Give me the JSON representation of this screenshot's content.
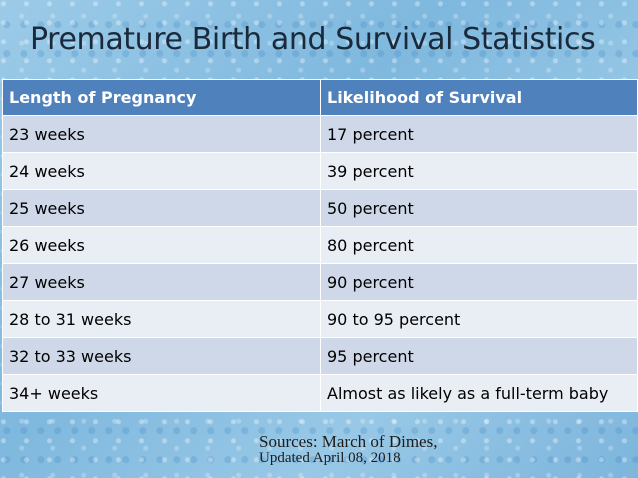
{
  "title": "Premature Birth and Survival Statistics",
  "table": {
    "headers": [
      "Length of Pregnancy",
      "Likelihood of Survival"
    ],
    "rows": [
      [
        "23 weeks",
        "17 percent"
      ],
      [
        "24 weeks",
        "39 percent"
      ],
      [
        "25 weeks",
        "50 percent"
      ],
      [
        "26 weeks",
        "80 percent"
      ],
      [
        "27 weeks",
        "90 percent"
      ],
      [
        "28 to 31 weeks",
        "90 to 95 percent"
      ],
      [
        "32 to 33 weeks",
        "95 percent"
      ],
      [
        "34+ weeks",
        "Almost as likely as a full-term baby"
      ]
    ]
  },
  "source": {
    "line1": "Sources: March of Dimes,",
    "line2": "Updated April 08, 2018"
  },
  "colors": {
    "header_bg": "#4f81bd",
    "row_dark": "#cfd8e8",
    "row_light": "#e9edf4"
  }
}
